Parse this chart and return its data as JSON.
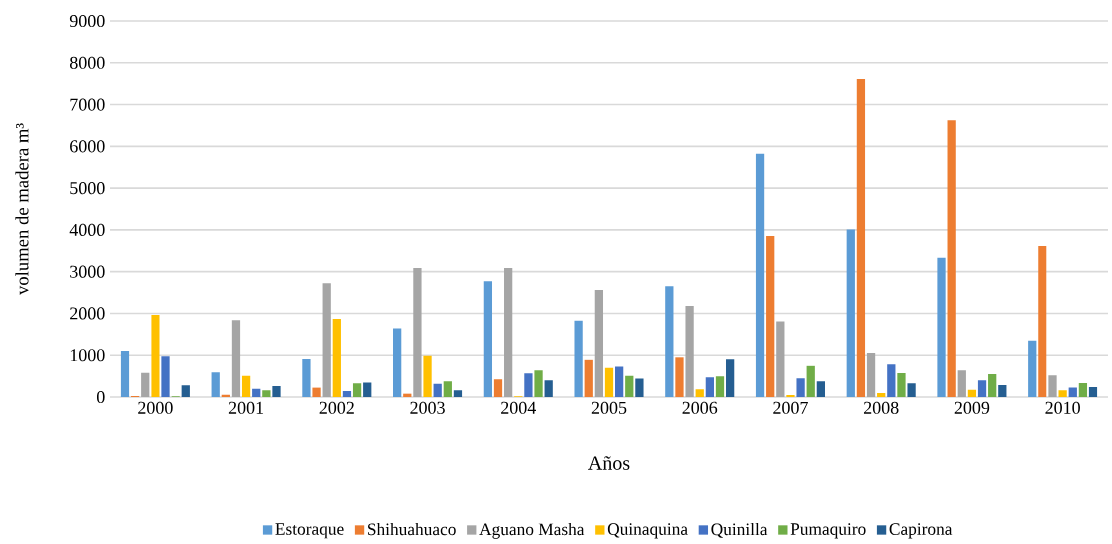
{
  "chart_data": {
    "type": "bar",
    "xlabel": "Años",
    "ylabel": "volumen de madera m³",
    "categories": [
      "2000",
      "2001",
      "2002",
      "2003",
      "2004",
      "2005",
      "2006",
      "2007",
      "2008",
      "2009",
      "2010"
    ],
    "series": [
      {
        "name": "Estoraque",
        "color": "#5b9bd5",
        "values": [
          1100,
          590,
          910,
          1640,
          2770,
          1825,
          2650,
          5825,
          4010,
          3335,
          1345
        ]
      },
      {
        "name": "Shihuahuaco",
        "color": "#ed7d31",
        "values": [
          25,
          55,
          225,
          80,
          425,
          890,
          950,
          3855,
          7610,
          6625,
          3615
        ]
      },
      {
        "name": "Aguano Masha",
        "color": "#a5a5a5",
        "values": [
          580,
          1840,
          2720,
          3090,
          3090,
          2560,
          2180,
          1810,
          1055,
          640,
          520
        ]
      },
      {
        "name": "Quinaquina",
        "color": "#ffc000",
        "values": [
          1960,
          510,
          1870,
          985,
          15,
          700,
          185,
          50,
          95,
          175,
          160
        ]
      },
      {
        "name": "Quinilla",
        "color": "#4472c4",
        "values": [
          976,
          200,
          145,
          320,
          570,
          730,
          470,
          450,
          785,
          400,
          225
        ]
      },
      {
        "name": "Pumaquiro",
        "color": "#70ad47",
        "values": [
          15,
          160,
          330,
          375,
          640,
          510,
          495,
          750,
          575,
          550,
          335
        ]
      },
      {
        "name": "Capirona",
        "color": "#255e91",
        "values": [
          280,
          265,
          345,
          160,
          400,
          440,
          905,
          375,
          330,
          290,
          240
        ]
      }
    ],
    "ylim": [
      0,
      9000
    ],
    "yticks": [
      0,
      1000,
      2000,
      3000,
      4000,
      5000,
      6000,
      7000,
      8000,
      9000
    ],
    "grid": "y",
    "legend": "bottom"
  }
}
